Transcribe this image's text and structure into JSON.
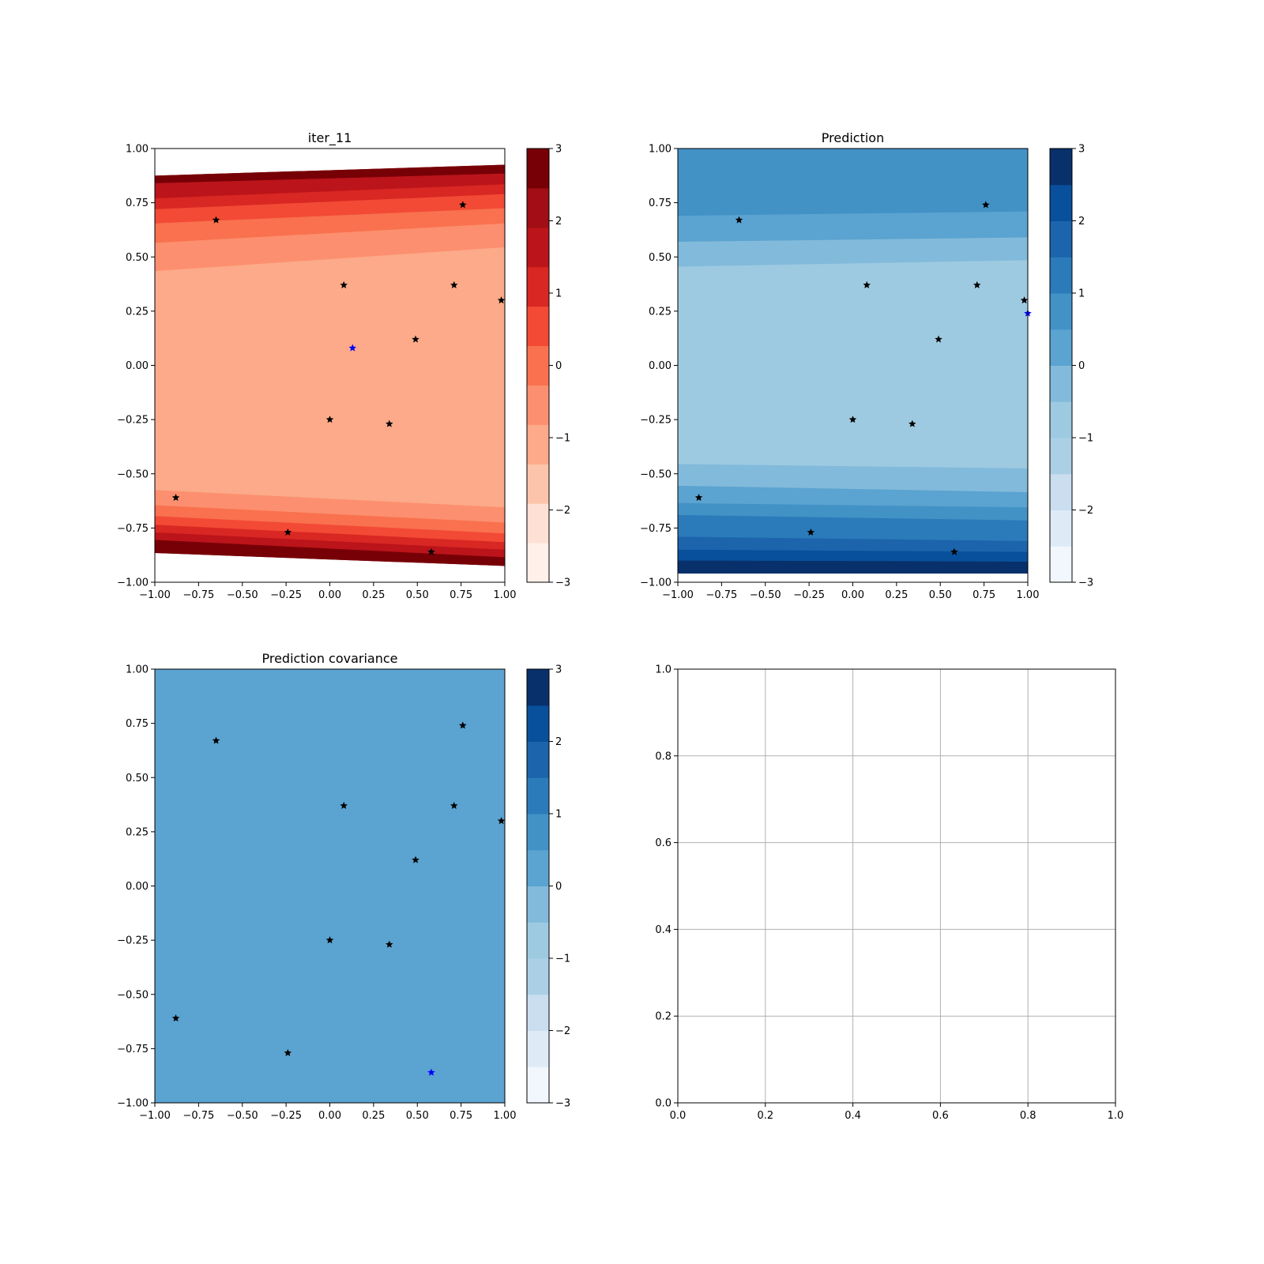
{
  "figure": {
    "background": "#ffffff"
  },
  "star_color_default": "#000000",
  "star_color_highlight": "#0000ff",
  "chart_data": [
    {
      "type": "heatmap",
      "title": "iter_11",
      "colormap": "Reds",
      "colors": [
        "#fff0e9",
        "#fee1d4",
        "#fcc5ab",
        "#fcaa89",
        "#fc8f6f",
        "#f9714e",
        "#f24a35",
        "#d92723",
        "#bb141a",
        "#a10e15",
        "#770007"
      ],
      "xlim": [
        -1.0,
        1.0
      ],
      "ylim": [
        -1.0,
        1.0
      ],
      "x_ticks": [
        "−1.00",
        "−0.75",
        "−0.50",
        "−0.25",
        "0.00",
        "0.25",
        "0.50",
        "0.75",
        "1.00"
      ],
      "y_ticks": [
        "−1.00",
        "−0.75",
        "−0.50",
        "−0.25",
        "0.00",
        "0.25",
        "0.50",
        "0.75",
        "1.00"
      ],
      "colorbar": {
        "range": [
          -3,
          3
        ],
        "ticks": [
          "−3",
          "−2",
          "−1",
          "0",
          "1",
          "2",
          "3"
        ]
      },
      "bands": [
        {
          "level": 3,
          "lower": [
            -0.435,
            -0.535
          ]
        },
        {
          "level": 4,
          "lower": [
            -0.575,
            -0.655
          ]
        },
        {
          "level": 5,
          "lower": [
            -0.645,
            -0.725
          ]
        },
        {
          "level": 6,
          "lower": [
            -0.695,
            -0.775
          ]
        },
        {
          "level": 7,
          "lower": [
            -0.735,
            -0.815
          ]
        },
        {
          "level": 8,
          "lower": [
            -0.77,
            -0.85
          ]
        },
        {
          "level": 9,
          "lower": [
            -0.805,
            -0.885
          ]
        },
        {
          "level": 10,
          "lower": [
            -0.865,
            -0.925
          ]
        },
        {
          "level": 4,
          "upper": [
            0.435,
            0.545
          ]
        },
        {
          "level": 5,
          "upper": [
            0.565,
            0.655
          ]
        },
        {
          "level": 6,
          "upper": [
            0.655,
            0.725
          ]
        },
        {
          "level": 7,
          "upper": [
            0.72,
            0.79
          ]
        },
        {
          "level": 8,
          "upper": [
            0.77,
            0.835
          ]
        },
        {
          "level": 9,
          "upper": [
            0.84,
            0.885
          ]
        },
        {
          "level": 10,
          "upper": [
            0.875,
            0.925
          ]
        }
      ],
      "base_level": 3,
      "points": [
        [
          -0.65,
          0.67
        ],
        [
          0.76,
          0.74
        ],
        [
          0.08,
          0.37
        ],
        [
          0.71,
          0.37
        ],
        [
          0.98,
          0.3
        ],
        [
          0.49,
          0.12
        ],
        [
          0.0,
          -0.25
        ],
        [
          0.34,
          -0.27
        ],
        [
          -0.88,
          -0.61
        ],
        [
          -0.24,
          -0.77
        ],
        [
          0.58,
          -0.86
        ]
      ],
      "highlight_points": [
        [
          0.13,
          0.08
        ]
      ]
    },
    {
      "type": "heatmap",
      "title": "Prediction",
      "colormap": "Blues",
      "colors": [
        "#f1f7fd",
        "#deebf7",
        "#cadef0",
        "#abd0e6",
        "#9ecae1",
        "#82badb",
        "#5ba3d0",
        "#4292c6",
        "#2b7bba",
        "#1c64ac",
        "#08509b",
        "#08306b"
      ],
      "xlim": [
        -1.0,
        1.0
      ],
      "ylim": [
        -1.0,
        1.0
      ],
      "x_ticks": [
        "−1.00",
        "−0.75",
        "−0.50",
        "−0.25",
        "0.00",
        "0.25",
        "0.50",
        "0.75",
        "1.00"
      ],
      "y_ticks": [
        "−1.00",
        "−0.75",
        "−0.50",
        "−0.25",
        "0.00",
        "0.25",
        "0.50",
        "0.75",
        "1.00"
      ],
      "colorbar": {
        "range": [
          -3,
          3
        ],
        "ticks": [
          "−3",
          "−2",
          "−1",
          "0",
          "1",
          "2",
          "3"
        ]
      },
      "bands": [
        {
          "level": 5,
          "lower": [
            -0.455,
            -0.475
          ]
        },
        {
          "level": 6,
          "lower": [
            -0.555,
            -0.585
          ]
        },
        {
          "level": 7,
          "lower": [
            -0.635,
            -0.655
          ]
        },
        {
          "level": 8,
          "lower": [
            -0.69,
            -0.715
          ]
        },
        {
          "level": 9,
          "lower": [
            -0.79,
            -0.81
          ]
        },
        {
          "level": 10,
          "lower": [
            -0.85,
            -0.86
          ]
        },
        {
          "level": 11,
          "lower": [
            -0.9,
            -0.905
          ]
        },
        {
          "level": 12,
          "lower": [
            -0.96,
            -0.96
          ]
        },
        {
          "level": 5,
          "upper": [
            0.455,
            0.485
          ]
        },
        {
          "level": 6,
          "upper": [
            0.57,
            0.59
          ]
        },
        {
          "level": 7,
          "upper": [
            0.69,
            0.71
          ]
        }
      ],
      "base_level": 4,
      "bottom_clip": -0.96,
      "points": [
        [
          -0.65,
          0.67
        ],
        [
          0.76,
          0.74
        ],
        [
          0.08,
          0.37
        ],
        [
          0.71,
          0.37
        ],
        [
          0.98,
          0.3
        ],
        [
          0.49,
          0.12
        ],
        [
          0.0,
          -0.25
        ],
        [
          0.34,
          -0.27
        ],
        [
          -0.88,
          -0.61
        ],
        [
          -0.24,
          -0.77
        ],
        [
          0.58,
          -0.86
        ]
      ],
      "highlight_points": [
        [
          1.0,
          0.24
        ]
      ]
    },
    {
      "type": "heatmap",
      "title": "Prediction covariance",
      "colormap": "Blues",
      "colors": [
        "#f1f7fd",
        "#deebf7",
        "#cadef0",
        "#abd0e6",
        "#9ecae1",
        "#82badb",
        "#5ba3d0",
        "#4292c6",
        "#2b7bba",
        "#1c64ac",
        "#08509b",
        "#08306b"
      ],
      "xlim": [
        -1.0,
        1.0
      ],
      "ylim": [
        -1.0,
        1.0
      ],
      "x_ticks": [
        "−1.00",
        "−0.75",
        "−0.50",
        "−0.25",
        "0.00",
        "0.25",
        "0.50",
        "0.75",
        "1.00"
      ],
      "y_ticks": [
        "−1.00",
        "−0.75",
        "−0.50",
        "−0.25",
        "0.00",
        "0.25",
        "0.50",
        "0.75",
        "1.00"
      ],
      "colorbar": {
        "range": [
          -3,
          3
        ],
        "ticks": [
          "−3",
          "−2",
          "−1",
          "0",
          "1",
          "2",
          "3"
        ]
      },
      "bands": [],
      "base_level": 6,
      "points": [
        [
          -0.65,
          0.67
        ],
        [
          0.76,
          0.74
        ],
        [
          0.08,
          0.37
        ],
        [
          0.71,
          0.37
        ],
        [
          0.98,
          0.3
        ],
        [
          0.49,
          0.12
        ],
        [
          0.0,
          -0.25
        ],
        [
          0.34,
          -0.27
        ],
        [
          -0.88,
          -0.61
        ],
        [
          -0.24,
          -0.77
        ]
      ],
      "highlight_points": [
        [
          0.58,
          -0.86
        ]
      ]
    },
    {
      "type": "line",
      "title": "",
      "xlim": [
        0.0,
        1.0
      ],
      "ylim": [
        0.0,
        1.0
      ],
      "x_ticks": [
        "0.0",
        "0.2",
        "0.4",
        "0.6",
        "0.8",
        "1.0"
      ],
      "y_ticks": [
        "0.0",
        "0.2",
        "0.4",
        "0.6",
        "0.8",
        "1.0"
      ],
      "grid": true,
      "series": []
    }
  ]
}
